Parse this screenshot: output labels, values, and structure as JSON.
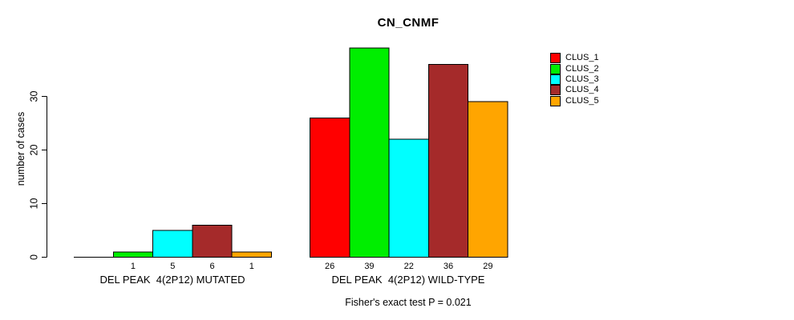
{
  "chart_data": {
    "type": "bar",
    "title": "CN_CNMF",
    "ylabel": "number of cases",
    "yticks": [
      0,
      10,
      20,
      30
    ],
    "ylim": [
      0,
      39.5
    ],
    "grid": false,
    "legend_position": "right",
    "categories": [
      "DEL PEAK  4(2P12) MUTATED",
      "DEL PEAK  4(2P12) WILD-TYPE"
    ],
    "series": [
      {
        "name": "CLUS_1",
        "color": "#FF0000",
        "values": [
          0,
          26
        ]
      },
      {
        "name": "CLUS_2",
        "color": "#00EE00",
        "values": [
          1,
          39
        ]
      },
      {
        "name": "CLUS_3",
        "color": "#00FFFF",
        "values": [
          5,
          22
        ]
      },
      {
        "name": "CLUS_4",
        "color": "#A52A2A",
        "values": [
          6,
          36
        ]
      },
      {
        "name": "CLUS_5",
        "color": "#FFA500",
        "values": [
          1,
          29
        ]
      }
    ],
    "bar_value_labels": [
      [
        "",
        "1",
        "5",
        "6",
        "1"
      ],
      [
        "26",
        "39",
        "22",
        "36",
        "29"
      ]
    ],
    "footnote": "Fisher's exact test P = 0.021",
    "background": "#FFFFFF",
    "axis_color": "#000000"
  }
}
